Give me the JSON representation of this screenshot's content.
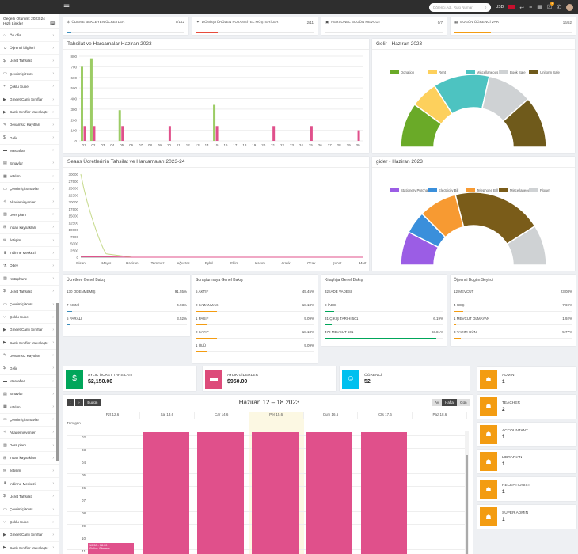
{
  "topbar": {
    "search_placeholder": "Öğrenci Adı, Rulo Numar",
    "currency": "USD",
    "badge_count": "2"
  },
  "sidebar": {
    "session": "Geçerli Oturum: 2023-24",
    "quick_links": "Hızlı Linkler",
    "items": [
      {
        "label": "Ön ofis",
        "icon": "office-icon"
      },
      {
        "label": "Öğrenci bilgileri",
        "icon": "user-icon"
      },
      {
        "label": "Ücret Tahsilatı",
        "icon": "money-icon"
      },
      {
        "label": "Çevrimiçi Kurs",
        "icon": "monitor-icon"
      },
      {
        "label": "Çoklu Şube",
        "icon": "branch-icon"
      },
      {
        "label": "Gmeet Canlı Sınıflar",
        "icon": "video-icon"
      },
      {
        "label": "Canlı Sınıflar Yakınlaştır",
        "icon": "video-icon"
      },
      {
        "label": "Devamsız Kayıtları",
        "icon": "attendance-icon"
      },
      {
        "label": "Gelir",
        "icon": "dollar-icon"
      },
      {
        "label": "Masraflar",
        "icon": "card-icon"
      },
      {
        "label": "Sınavlar",
        "icon": "exam-icon"
      },
      {
        "label": "katılım",
        "icon": "calendar-icon"
      },
      {
        "label": "Çevrimiçi Sınavlar",
        "icon": "laptop-icon"
      },
      {
        "label": "Akademisyenler",
        "icon": "cap-icon"
      },
      {
        "label": "Ders planı",
        "icon": "book-icon"
      },
      {
        "label": "İnsan kaynakları",
        "icon": "sitemap-icon"
      },
      {
        "label": "İletişim",
        "icon": "bullhorn-icon"
      },
      {
        "label": "İndirme Merkezi",
        "icon": "download-icon"
      },
      {
        "label": "Ödev",
        "icon": "flask-icon"
      },
      {
        "label": "Kütüphane",
        "icon": "library-icon"
      },
      {
        "label": "Ücret Tahsilatı",
        "icon": "money-icon"
      },
      {
        "label": "Çevrimiçi Kurs",
        "icon": "monitor-icon"
      },
      {
        "label": "Çoklu Şube",
        "icon": "branch-icon"
      },
      {
        "label": "Gmeet Canlı Sınıflar",
        "icon": "video-icon"
      },
      {
        "label": "Canlı Sınıflar Yakınlaştır",
        "icon": "video-icon"
      },
      {
        "label": "Devamsız Kayıtları",
        "icon": "attendance-icon"
      },
      {
        "label": "Gelir",
        "icon": "dollar-icon"
      },
      {
        "label": "Masraflar",
        "icon": "card-icon"
      },
      {
        "label": "Sınavlar",
        "icon": "exam-icon"
      },
      {
        "label": "katılım",
        "icon": "calendar-icon"
      },
      {
        "label": "Çevrimiçi Sınavlar",
        "icon": "laptop-icon"
      },
      {
        "label": "Akademisyenler",
        "icon": "cap-icon"
      },
      {
        "label": "Ders planı",
        "icon": "book-icon"
      },
      {
        "label": "İnsan kaynakları",
        "icon": "sitemap-icon"
      },
      {
        "label": "İletişim",
        "icon": "bullhorn-icon"
      },
      {
        "label": "İndirme Merkezi",
        "icon": "download-icon"
      },
      {
        "label": "Ücret Tahsilatı",
        "icon": "money-icon"
      },
      {
        "label": "Çevrimiçi Kurs",
        "icon": "monitor-icon"
      },
      {
        "label": "Çoklu Şube",
        "icon": "branch-icon"
      },
      {
        "label": "Gmeet Canlı Sınıflar",
        "icon": "video-icon"
      },
      {
        "label": "Canlı Sınıflar Yakınlaştır",
        "icon": "video-icon"
      }
    ]
  },
  "stats": [
    {
      "label": "ÖDEME BEKLEYEN ÜCRETLER",
      "value": "5/142",
      "pct": 0.035,
      "color": "#3c8dbc",
      "icon": "money-icon"
    },
    {
      "label": "DÖNÜŞTÜRÜLEN POTANSİYEL MÜŞTERİLER",
      "value": "2/11",
      "pct": 0.18,
      "color": "#e74c3c",
      "icon": "ticket-icon"
    },
    {
      "label": "PERSONEL BUGÜN MEVCUT",
      "value": "0/7",
      "pct": 0,
      "color": "#00a65a",
      "icon": "id-icon"
    },
    {
      "label": "BUGÜN ÖĞRENCİ VAR",
      "value": "16/52",
      "pct": 0.31,
      "color": "#f39c12",
      "icon": "calendar-icon"
    }
  ],
  "charts": {
    "fees": "Tahsilat ve Harcamalar Haziran 2023",
    "income": "Gelir - Haziran 2023",
    "session": "Seans Ücretlerinin Tahsilat ve Harcamaları 2023-24",
    "expense": "gider - Haziran 2023"
  },
  "chart_data": [
    {
      "type": "bar",
      "categories": [
        "01",
        "02",
        "03",
        "04",
        "05",
        "06",
        "07",
        "08",
        "09",
        "10",
        "11",
        "12",
        "13",
        "14",
        "15",
        "16",
        "17",
        "18",
        "19",
        "20",
        "21",
        "22",
        "23",
        "24",
        "25",
        "26",
        "27",
        "28",
        "29",
        "30"
      ],
      "ylim": [
        0,
        800
      ],
      "yticks": [
        0,
        100,
        200,
        300,
        400,
        500,
        600,
        700,
        800
      ],
      "series": [
        {
          "color": "#9ccc65",
          "values": [
            700,
            780,
            0,
            0,
            290,
            0,
            0,
            0,
            0,
            0,
            0,
            0,
            0,
            0,
            340,
            0,
            0,
            0,
            0,
            0,
            0,
            0,
            0,
            0,
            0,
            0,
            0,
            0,
            0,
            0
          ]
        },
        {
          "color": "#e0508b",
          "values": [
            140,
            140,
            0,
            0,
            140,
            0,
            0,
            0,
            0,
            140,
            0,
            0,
            0,
            0,
            140,
            0,
            0,
            0,
            0,
            0,
            140,
            0,
            0,
            0,
            140,
            0,
            0,
            0,
            0,
            100
          ]
        }
      ]
    },
    {
      "type": "pie",
      "half": true,
      "series": [
        {
          "name": "Donation",
          "value": 20,
          "color": "#6aaa28"
        },
        {
          "name": "Rent",
          "value": 12,
          "color": "#fdd05c"
        },
        {
          "name": "Miscellaneous",
          "value": 25,
          "color": "#4dc3c1"
        },
        {
          "name": "Book Sale",
          "value": 20,
          "color": "#cfd2d4"
        },
        {
          "name": "Uniform Sale",
          "value": 23,
          "color": "#6f5a1b"
        }
      ]
    },
    {
      "type": "line",
      "categories": [
        "Nisan",
        "Mayıs",
        "Haziran",
        "Temmuz",
        "Ağustos",
        "Eylül",
        "Ekim",
        "Kasım",
        "Aralık",
        "Ocak",
        "Şubat",
        "Mart"
      ],
      "ylim": [
        0,
        30000
      ],
      "yticks": [
        0,
        2500,
        5000,
        7500,
        10000,
        12500,
        15000,
        17500,
        20000,
        22500,
        25000,
        27500,
        30000
      ],
      "series": [
        {
          "color": "#c5d98a",
          "values": [
            30000,
            1200,
            0,
            0,
            0,
            0,
            0,
            0,
            0,
            0,
            0,
            0
          ]
        },
        {
          "color": "#e0508b",
          "values": [
            200,
            180,
            0,
            0,
            0,
            0,
            0,
            0,
            0,
            0,
            0,
            0
          ]
        }
      ]
    },
    {
      "type": "pie",
      "half": true,
      "series": [
        {
          "name": "Stationery Purchase",
          "value": 15,
          "color": "#9b5de5"
        },
        {
          "name": "Electricity Bill",
          "value": 10,
          "color": "#3a8fdb"
        },
        {
          "name": "Telephone Bill",
          "value": 17,
          "color": "#f79a32"
        },
        {
          "name": "Miscellaneous",
          "value": 40,
          "color": "#7a5c19"
        },
        {
          "name": "Flower",
          "value": 18,
          "color": "#cfd2d4"
        }
      ]
    }
  ],
  "overviews": [
    {
      "title": "Ücretlere Genel Bakış",
      "rows": [
        {
          "label": "130 ÖDENMEMİŞ",
          "pct": "91.55%",
          "val": 0.9155,
          "color": "#3c8dbc"
        },
        {
          "label": "7 KISMİ",
          "pct": "4.93%",
          "val": 0.0493,
          "color": "#3c8dbc"
        },
        {
          "label": "5 PARALI",
          "pct": "3.52%",
          "val": 0.0352,
          "color": "#3c8dbc"
        }
      ]
    },
    {
      "title": "Soruşturmaya Genel Bakış",
      "rows": [
        {
          "label": "5 AKTİF",
          "pct": "45.45%",
          "val": 0.4545,
          "color": "#e74c3c"
        },
        {
          "label": "2 KAZANMAK",
          "pct": "18.18%",
          "val": 0.1818,
          "color": "#f39c12"
        },
        {
          "label": "1 PASİF",
          "pct": "9.09%",
          "val": 0.0909,
          "color": "#f39c12"
        },
        {
          "label": "2 KAYIP",
          "pct": "18.18%",
          "val": 0.1818,
          "color": "#f39c12"
        },
        {
          "label": "1 ÖLÜ",
          "pct": "9.09%",
          "val": 0.0909,
          "color": "#f39c12"
        }
      ]
    },
    {
      "title": "Kitaplığa Genel Bakış",
      "rows": [
        {
          "label": "32 İADE VADESİ",
          "pct": "",
          "val": 0.3,
          "color": "#00a65a"
        },
        {
          "label": "8 İADE",
          "pct": "",
          "val": 0.08,
          "color": "#00a65a"
        },
        {
          "label": "31 ÇIKIŞ TARİHİ 501",
          "pct": "6.19%",
          "val": 0.0619,
          "color": "#00a65a"
        },
        {
          "label": "470 MEVCUT 501",
          "pct": "93.81%",
          "val": 0.9381,
          "color": "#00a65a"
        }
      ]
    },
    {
      "title": "Öğrenci Bugün Seyirci",
      "rows": [
        {
          "label": "12 MEVCUT",
          "pct": "23.08%",
          "val": 0.2308,
          "color": "#f39c12"
        },
        {
          "label": "4 GEÇ",
          "pct": "7.69%",
          "val": 0.0769,
          "color": "#f39c12"
        },
        {
          "label": "1 MEVCUT OLMAYAN",
          "pct": "1.92%",
          "val": 0.0192,
          "color": "#f39c12"
        },
        {
          "label": "3 YARIM GÜN",
          "pct": "5.77%",
          "val": 0.0577,
          "color": "#f39c12"
        }
      ]
    }
  ],
  "info": [
    {
      "label": "AYLIK ÜCRET TAHSİLATI",
      "value": "$2,150.00",
      "color": "#00a65a",
      "icon": "money-icon"
    },
    {
      "label": "AYLIK GİDERLER",
      "value": "$950.00",
      "color": "#dd4b7a",
      "icon": "card-icon"
    },
    {
      "label": "ÖĞRENCİ",
      "value": "52",
      "color": "#00c0ef",
      "icon": "user-icon"
    }
  ],
  "roles": [
    {
      "label": "ADMİN",
      "value": "1"
    },
    {
      "label": "TEACHER",
      "value": "2"
    },
    {
      "label": "ACCOUNTANT",
      "value": "1"
    },
    {
      "label": "LIBRARIAN",
      "value": "1"
    },
    {
      "label": "RECEPTIONIST",
      "value": "1"
    },
    {
      "label": "SUPER ADMIN",
      "value": "1"
    }
  ],
  "calendar": {
    "title": "Haziran 12 – 18 2023",
    "today": "Bugün",
    "month": "Ay",
    "week": "Hafta",
    "day": "Gün",
    "allday": "Tüm gün",
    "days": [
      "Pzt 12.6",
      "Sal 13.6",
      "Çar 14.6",
      "Per 15.6",
      "Cum 16.6",
      "Cts 17.6",
      "Paz 18.6"
    ],
    "hours": [
      "02",
      "03",
      "04",
      "05",
      "06",
      "07",
      "08",
      "09",
      "10",
      "11"
    ],
    "event_time": "10:30 - 18:00",
    "event_title": "Online Classes"
  }
}
